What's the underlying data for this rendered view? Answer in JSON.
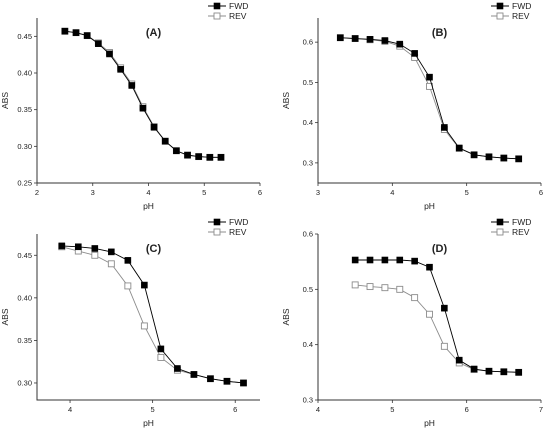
{
  "colors": {
    "fwd": "#000000",
    "rev": "#8c8c8c",
    "axis": "#333333"
  },
  "chart_data": [
    {
      "type": "line",
      "panel_label": "(A)",
      "xlabel": "pH",
      "ylabel": "ABS",
      "xlim": [
        2,
        6
      ],
      "ylim": [
        0.25,
        0.475
      ],
      "xticks": [
        "2",
        "3",
        "4",
        "5",
        "6"
      ],
      "yticks": [
        "0.25",
        "0.30",
        "0.35",
        "0.40",
        "0.45"
      ],
      "legend_position": "top-right",
      "series": [
        {
          "name": "FWD",
          "marker": "filled-square",
          "x": [
            2.5,
            2.7,
            2.9,
            3.1,
            3.3,
            3.5,
            3.7,
            3.9,
            4.1,
            4.3,
            4.5,
            4.7,
            4.9,
            5.1,
            5.3
          ],
          "y": [
            0.457,
            0.455,
            0.451,
            0.44,
            0.426,
            0.405,
            0.383,
            0.352,
            0.326,
            0.307,
            0.294,
            0.288,
            0.286,
            0.285,
            0.285
          ]
        },
        {
          "name": "REV",
          "marker": "open-square",
          "x": [
            2.5,
            2.7,
            2.9,
            3.1,
            3.3,
            3.5,
            3.7,
            3.9,
            4.1,
            4.3,
            4.5,
            4.7,
            4.9,
            5.1,
            5.3
          ],
          "y": [
            0.457,
            0.455,
            0.451,
            0.441,
            0.428,
            0.407,
            0.385,
            0.354,
            0.327,
            0.307,
            0.294,
            0.288,
            0.286,
            0.285,
            0.285
          ]
        }
      ]
    },
    {
      "type": "line",
      "panel_label": "(B)",
      "xlabel": "pH",
      "ylabel": "ABS",
      "xlim": [
        3,
        6
      ],
      "ylim": [
        0.25,
        0.66
      ],
      "xticks": [
        "3",
        "4",
        "5",
        "6"
      ],
      "yticks": [
        "0.3",
        "0.4",
        "0.5",
        "0.6"
      ],
      "legend_position": "top-right",
      "series": [
        {
          "name": "FWD",
          "marker": "filled-square",
          "x": [
            3.3,
            3.5,
            3.7,
            3.9,
            4.1,
            4.3,
            4.5,
            4.7,
            4.9,
            5.1,
            5.3,
            5.5,
            5.7
          ],
          "y": [
            0.611,
            0.609,
            0.607,
            0.604,
            0.595,
            0.572,
            0.513,
            0.388,
            0.337,
            0.32,
            0.315,
            0.312,
            0.31
          ]
        },
        {
          "name": "REV",
          "marker": "open-square",
          "x": [
            3.3,
            3.5,
            3.7,
            3.9,
            4.1,
            4.3,
            4.5,
            4.7,
            4.9,
            5.1,
            5.3,
            5.5,
            5.7
          ],
          "y": [
            0.611,
            0.609,
            0.606,
            0.602,
            0.59,
            0.562,
            0.49,
            0.383,
            0.336,
            0.32,
            0.315,
            0.312,
            0.31
          ]
        }
      ]
    },
    {
      "type": "line",
      "panel_label": "(C)",
      "xlabel": "pH",
      "ylabel": "ABS",
      "xlim": [
        3.6,
        6.3
      ],
      "ylim": [
        0.28,
        0.475
      ],
      "xticks": [
        "4",
        "5",
        "6"
      ],
      "yticks": [
        "0.30",
        "0.35",
        "0.40",
        "0.45"
      ],
      "legend_position": "top-right",
      "series": [
        {
          "name": "FWD",
          "marker": "filled-square",
          "x": [
            3.9,
            4.1,
            4.3,
            4.5,
            4.7,
            4.9,
            5.1,
            5.3,
            5.5,
            5.7,
            5.9,
            6.1
          ],
          "y": [
            0.461,
            0.46,
            0.458,
            0.454,
            0.444,
            0.415,
            0.34,
            0.317,
            0.31,
            0.305,
            0.302,
            0.3
          ]
        },
        {
          "name": "REV",
          "marker": "open-square",
          "x": [
            3.9,
            4.1,
            4.3,
            4.5,
            4.7,
            4.9,
            5.1,
            5.3,
            5.5,
            5.7,
            5.9,
            6.1
          ],
          "y": [
            0.46,
            0.455,
            0.45,
            0.44,
            0.414,
            0.367,
            0.33,
            0.315,
            0.31,
            0.305,
            0.302,
            0.3
          ]
        }
      ]
    },
    {
      "type": "line",
      "panel_label": "(D)",
      "xlabel": "pH",
      "ylabel": "ABS",
      "xlim": [
        4,
        7
      ],
      "ylim": [
        0.3,
        0.6
      ],
      "xticks": [
        "4",
        "5",
        "6",
        "7"
      ],
      "yticks": [
        "0.3",
        "0.4",
        "0.5",
        "0.6"
      ],
      "legend_position": "top-right",
      "series": [
        {
          "name": "FWD",
          "marker": "filled-square",
          "x": [
            4.5,
            4.7,
            4.9,
            5.1,
            5.3,
            5.5,
            5.7,
            5.9,
            6.1,
            6.3,
            6.5,
            6.7
          ],
          "y": [
            0.553,
            0.553,
            0.553,
            0.553,
            0.551,
            0.54,
            0.466,
            0.372,
            0.356,
            0.352,
            0.351,
            0.35
          ]
        },
        {
          "name": "REV",
          "marker": "open-square",
          "x": [
            4.5,
            4.7,
            4.9,
            5.1,
            5.3,
            5.5,
            5.7,
            5.9,
            6.1,
            6.3,
            6.5,
            6.7
          ],
          "y": [
            0.508,
            0.505,
            0.503,
            0.5,
            0.485,
            0.455,
            0.397,
            0.367,
            0.355,
            0.352,
            0.351,
            0.35
          ]
        }
      ]
    }
  ]
}
